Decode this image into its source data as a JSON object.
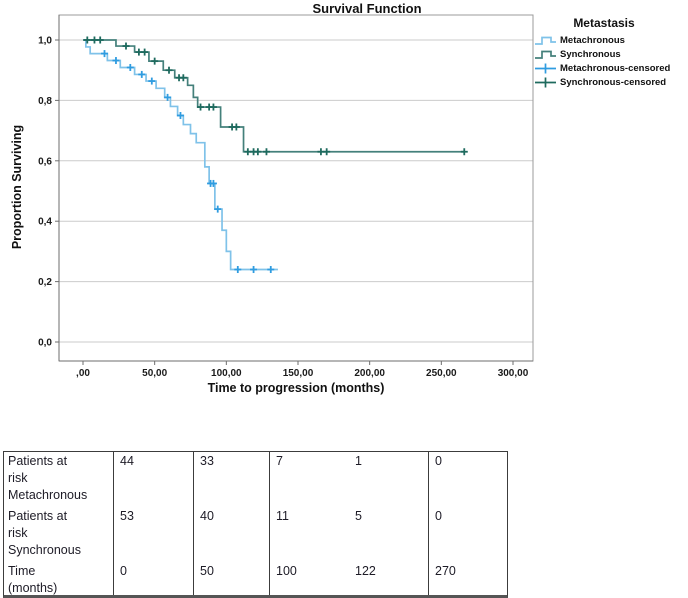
{
  "figure": {
    "title": "Survival Function",
    "y_axis_label": "Proportion Surviving",
    "x_axis_label": "Time to progression (months)",
    "legend_title": "Metastasis"
  },
  "chart_data": {
    "type": "line",
    "subtype": "kaplan-meier-step",
    "title": "Survival Function",
    "xlabel": "Time to progression (months)",
    "ylabel": "Proportion Surviving",
    "xlim": [
      0,
      300
    ],
    "ylim": [
      0.0,
      1.0
    ],
    "grid": true,
    "legend_position": "top-right",
    "legend_title": "Metastasis",
    "x_ticks": [
      {
        "label": ",00",
        "value": 0
      },
      {
        "label": "50,00",
        "value": 50
      },
      {
        "label": "100,00",
        "value": 100
      },
      {
        "label": "150,00",
        "value": 150
      },
      {
        "label": "200,00",
        "value": 200
      },
      {
        "label": "250,00",
        "value": 250
      },
      {
        "label": "300,00",
        "value": 300
      }
    ],
    "y_ticks": [
      {
        "label": "1,0",
        "value": 1.0
      },
      {
        "label": "0,8",
        "value": 0.8
      },
      {
        "label": "0,6",
        "value": 0.6
      },
      {
        "label": "0,4",
        "value": 0.4
      },
      {
        "label": "0,2",
        "value": 0.2
      },
      {
        "label": "0,0",
        "value": 0.0
      }
    ],
    "series": [
      {
        "name": "Metachronous",
        "color": "#7fc2e9",
        "censor_color": "#2f9ce0",
        "steps": [
          [
            0,
            1.0
          ],
          [
            2,
            0.977
          ],
          [
            5,
            0.955
          ],
          [
            17,
            0.932
          ],
          [
            26,
            0.909
          ],
          [
            36,
            0.886
          ],
          [
            44,
            0.864
          ],
          [
            51,
            0.84
          ],
          [
            57,
            0.81
          ],
          [
            61,
            0.78
          ],
          [
            66,
            0.75
          ],
          [
            70,
            0.72
          ],
          [
            75,
            0.69
          ],
          [
            79,
            0.66
          ],
          [
            85,
            0.58
          ],
          [
            88,
            0.525
          ],
          [
            92,
            0.44
          ],
          [
            97,
            0.37
          ],
          [
            100,
            0.3
          ],
          [
            103,
            0.24
          ]
        ],
        "end_time": 136,
        "censored": [
          [
            15,
            0.955
          ],
          [
            23,
            0.932
          ],
          [
            33,
            0.909
          ],
          [
            41,
            0.886
          ],
          [
            48,
            0.864
          ],
          [
            59,
            0.81
          ],
          [
            68,
            0.75
          ],
          [
            89,
            0.525
          ],
          [
            91,
            0.525
          ],
          [
            94,
            0.44
          ],
          [
            108,
            0.24
          ],
          [
            119,
            0.24
          ],
          [
            131,
            0.24
          ]
        ]
      },
      {
        "name": "Synchronous",
        "color": "#44807b",
        "censor_color": "#1e6a5e",
        "steps": [
          [
            0,
            1.0
          ],
          [
            23,
            0.98
          ],
          [
            36,
            0.96
          ],
          [
            46,
            0.93
          ],
          [
            56,
            0.9
          ],
          [
            64,
            0.875
          ],
          [
            73,
            0.85
          ],
          [
            77,
            0.81
          ],
          [
            80,
            0.778
          ],
          [
            96,
            0.712
          ],
          [
            112,
            0.63
          ]
        ],
        "end_time": 266,
        "censored": [
          [
            3,
            1.0
          ],
          [
            8,
            1.0
          ],
          [
            12,
            1.0
          ],
          [
            30,
            0.98
          ],
          [
            39,
            0.96
          ],
          [
            43,
            0.96
          ],
          [
            50,
            0.93
          ],
          [
            60,
            0.9
          ],
          [
            67,
            0.875
          ],
          [
            70,
            0.875
          ],
          [
            82,
            0.778
          ],
          [
            88,
            0.778
          ],
          [
            91,
            0.778
          ],
          [
            104,
            0.712
          ],
          [
            107,
            0.712
          ],
          [
            115,
            0.63
          ],
          [
            119,
            0.63
          ],
          [
            122,
            0.63
          ],
          [
            128,
            0.63
          ],
          [
            166,
            0.63
          ],
          [
            170,
            0.63
          ],
          [
            266,
            0.63
          ]
        ]
      }
    ],
    "legend_items": [
      {
        "label": "Metachronous",
        "glyph": "step-line",
        "series": 0
      },
      {
        "label": "Synchronous",
        "glyph": "step-line",
        "series": 1
      },
      {
        "label": "Metachronous-censored",
        "glyph": "censor-plus",
        "series": 0
      },
      {
        "label": "Synchronous-censored",
        "glyph": "censor-plus",
        "series": 1
      }
    ],
    "colors": {
      "gridline": "#cbcbcb",
      "frame": "#9b9b9b",
      "axis": "#6e6e6e",
      "text": "#1a1a1a"
    }
  },
  "risk_table": {
    "rows": [
      {
        "label_lines": [
          "Patients at",
          "risk",
          "Metachronous"
        ],
        "values": [
          "44",
          "33",
          "7",
          "1",
          "0"
        ]
      },
      {
        "label_lines": [
          "Patients at",
          "risk",
          "Synchronous"
        ],
        "values": [
          "53",
          "40",
          "11",
          "5",
          "0"
        ]
      },
      {
        "label_lines": [
          "Time",
          "(months)"
        ],
        "values": [
          "0",
          "50",
          "100",
          "122",
          "270"
        ]
      }
    ]
  }
}
